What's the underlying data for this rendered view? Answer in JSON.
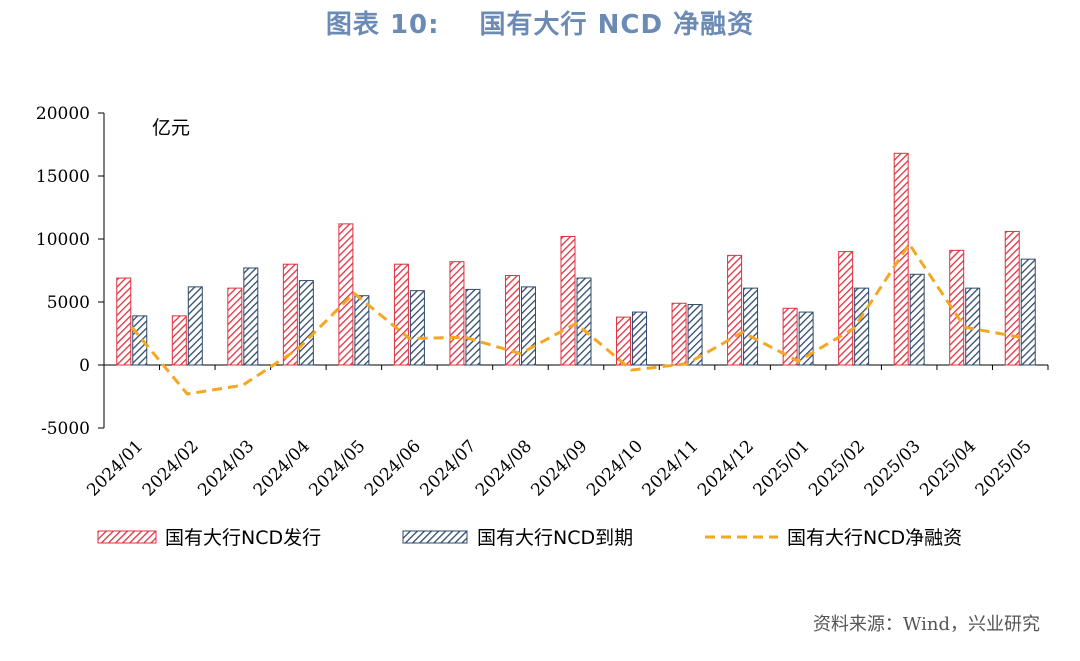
{
  "title": {
    "label": "图表 10:",
    "text": "国有大行 NCD 净融资"
  },
  "source": "资料来源：Wind，兴业研究",
  "colors": {
    "issue": "#e0303f",
    "maturity": "#2e4a6b",
    "net": "#f5a623",
    "title": "#6b8bb5"
  },
  "chart_data": {
    "type": "bar",
    "unit_label": "亿元",
    "categories": [
      "2024/01",
      "2024/02",
      "2024/03",
      "2024/04",
      "2024/05",
      "2024/06",
      "2024/07",
      "2024/08",
      "2024/09",
      "2024/10",
      "2024/11",
      "2024/12",
      "2025/01",
      "2025/02",
      "2025/03",
      "2025/04",
      "2025/05"
    ],
    "series": [
      {
        "name": "国有大行NCD发行",
        "type": "bar",
        "pattern": "red-hatch",
        "values": [
          6900,
          3900,
          6100,
          8000,
          11200,
          8000,
          8200,
          7100,
          10200,
          3800,
          4900,
          8700,
          4500,
          9000,
          16800,
          9100,
          10600
        ]
      },
      {
        "name": "国有大行NCD到期",
        "type": "bar",
        "pattern": "navy-hatch",
        "values": [
          3900,
          6200,
          7700,
          6700,
          5500,
          5900,
          6000,
          6200,
          6900,
          4200,
          4800,
          6100,
          4200,
          6100,
          7200,
          6100,
          8400
        ]
      },
      {
        "name": "国有大行NCD净融资",
        "type": "line",
        "style": "dashed",
        "values": [
          3000,
          -2300,
          -1600,
          1300,
          5700,
          2100,
          2200,
          900,
          3300,
          -400,
          100,
          2600,
          300,
          2900,
          9600,
          3000,
          2200
        ]
      }
    ],
    "ylim": [
      -5000,
      20000
    ],
    "yticks": [
      -5000,
      0,
      5000,
      10000,
      15000,
      20000
    ],
    "legend_position": "bottom"
  }
}
